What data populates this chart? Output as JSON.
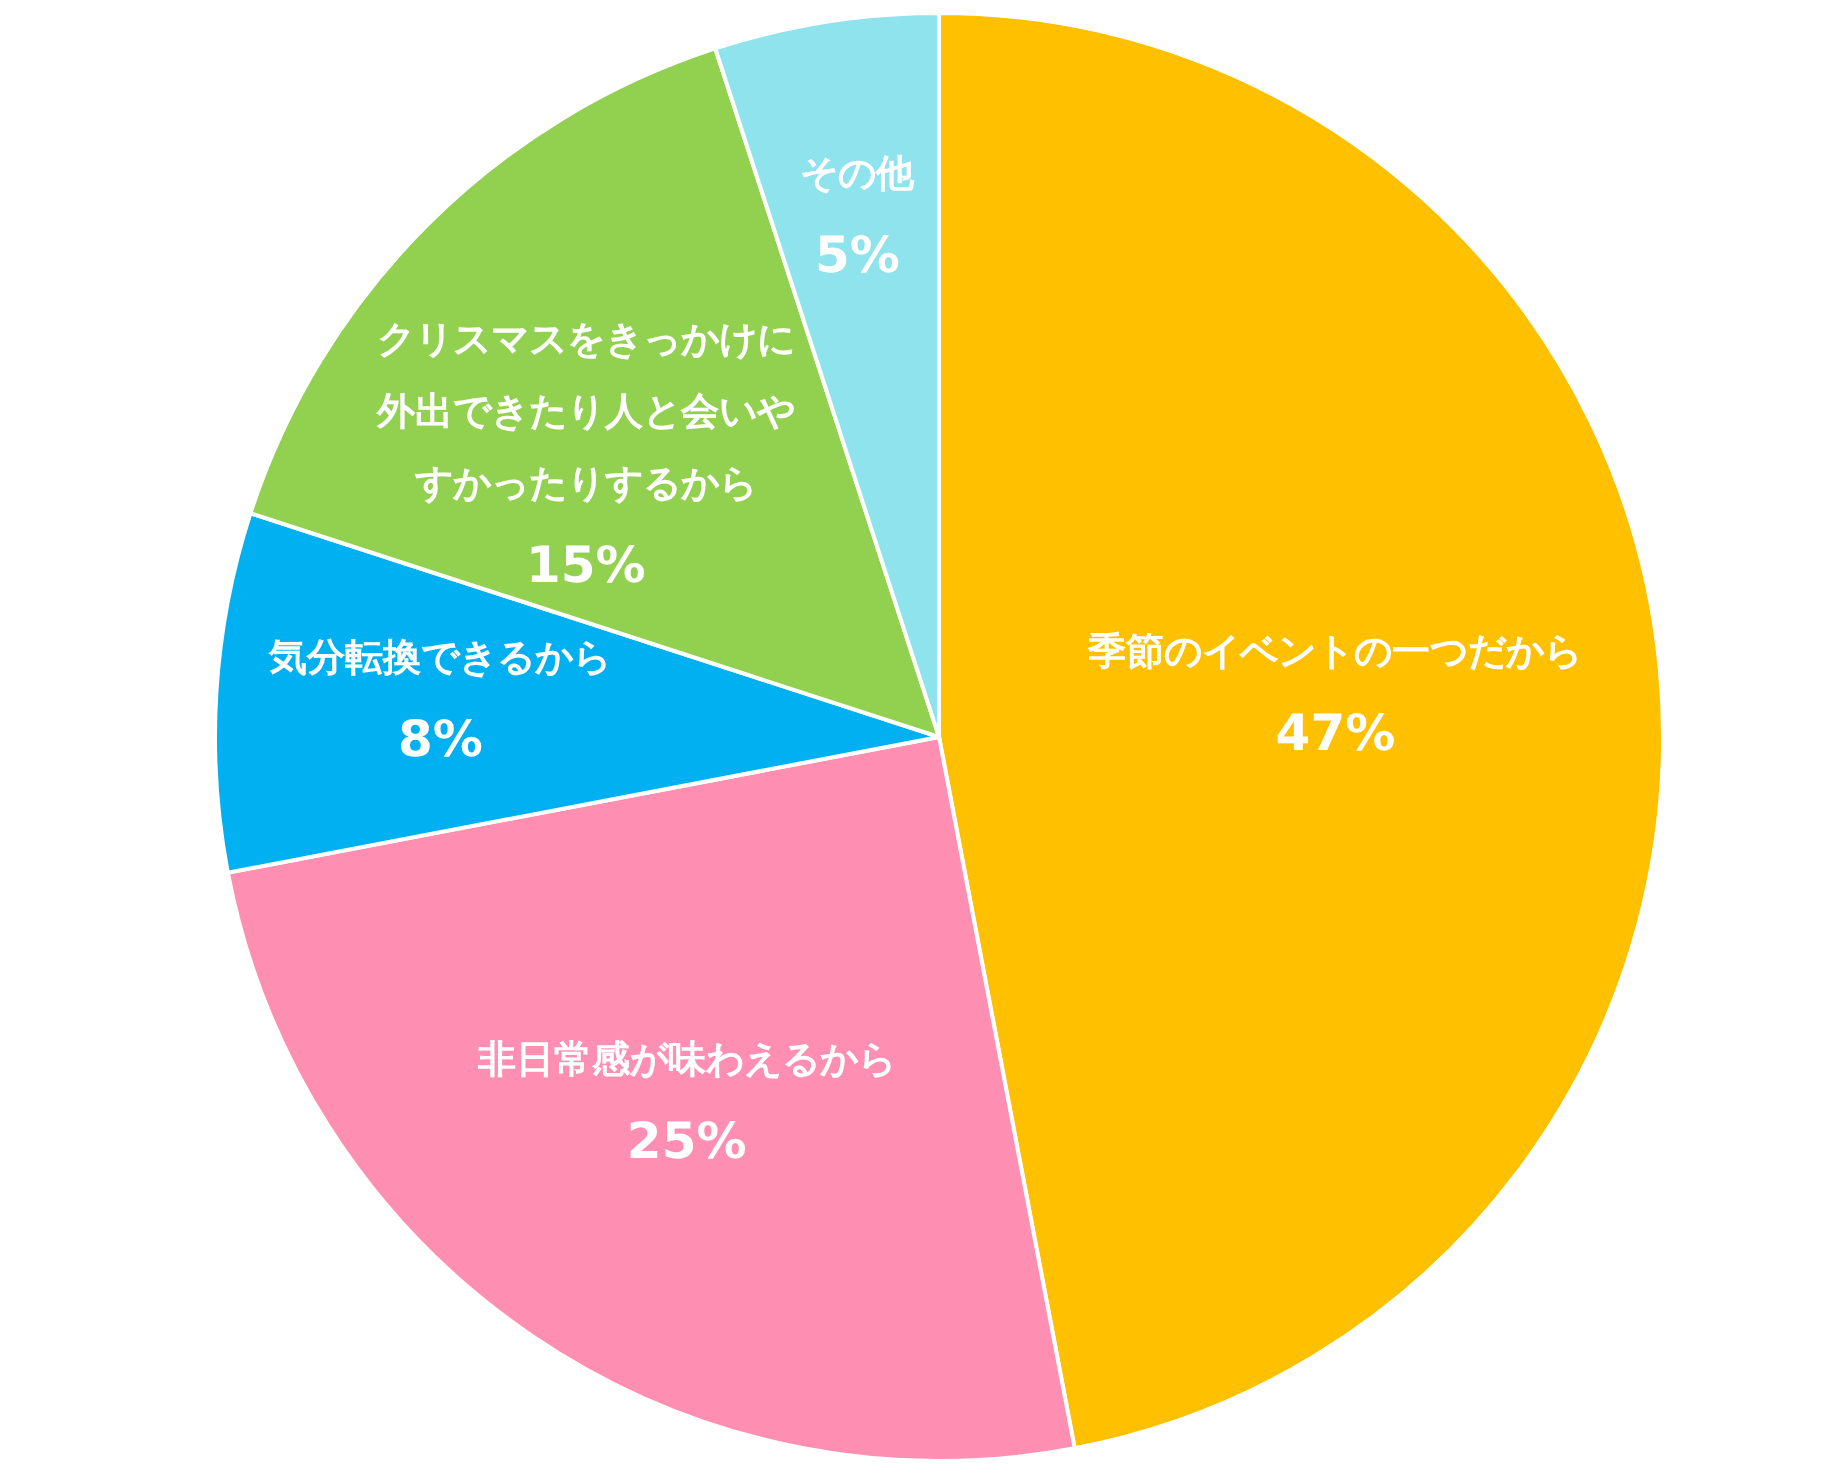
{
  "chart_data": {
    "type": "pie",
    "categories": [
      "季節のイベントの一つだから",
      "非日常感が味わえるから",
      "気分転換できるから",
      "クリスマスをきっかけに外出できたり人と会いやすかったりするから",
      "その他"
    ],
    "values": [
      47,
      25,
      8,
      15,
      5
    ],
    "colors": [
      "#ffc000",
      "#ff8fb2",
      "#00b0f0",
      "#92d050",
      "#8fe3ec"
    ],
    "value_labels": [
      "47%",
      "25%",
      "8%",
      "15%",
      "5%"
    ]
  }
}
